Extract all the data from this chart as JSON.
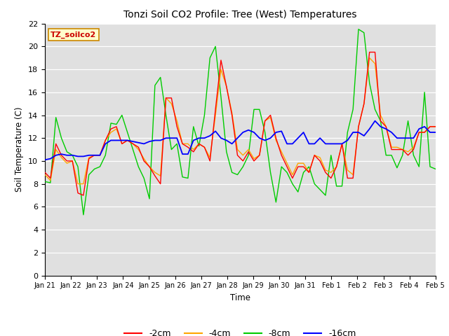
{
  "title": "Tonzi Soil CO2 Profile: Tree (West) Temperatures",
  "xlabel": "Time",
  "ylabel": "Soil Temperature (C)",
  "legend_label": "TZ_soilco2",
  "ylim": [
    0,
    22
  ],
  "yticks": [
    0,
    2,
    4,
    6,
    8,
    10,
    12,
    14,
    16,
    18,
    20,
    22
  ],
  "xtick_labels": [
    "Jan 21",
    "Jan 22",
    "Jan 23",
    "Jan 24",
    "Jan 25",
    "Jan 26",
    "Jan 27",
    "Jan 28",
    "Jan 29",
    "Jan 30",
    "Jan 31",
    "Feb 1",
    "Feb 2",
    "Feb 3",
    "Feb 4",
    "Feb 5"
  ],
  "colors": {
    "m2cm": "#ff0000",
    "m4cm": "#ffa500",
    "m8cm": "#00cc00",
    "m16cm": "#0000ff"
  },
  "series": {
    "m2cm": [
      9.0,
      8.5,
      11.5,
      10.5,
      10.0,
      10.0,
      7.2,
      7.0,
      10.2,
      10.5,
      10.5,
      11.8,
      12.8,
      13.0,
      11.5,
      11.8,
      11.5,
      11.2,
      10.0,
      9.5,
      8.7,
      8.0,
      15.5,
      15.5,
      13.0,
      11.5,
      11.2,
      10.8,
      11.5,
      11.2,
      10.0,
      14.5,
      18.8,
      16.5,
      14.0,
      10.5,
      10.0,
      10.8,
      10.0,
      10.5,
      13.5,
      14.0,
      12.0,
      10.5,
      9.5,
      8.5,
      9.5,
      9.5,
      9.0,
      10.5,
      10.0,
      9.0,
      8.5,
      9.5,
      11.5,
      8.5,
      8.5,
      13.0,
      15.0,
      19.5,
      19.5,
      13.5,
      13.0,
      11.0,
      11.0,
      11.0,
      10.5,
      11.0,
      12.5,
      12.5,
      13.0,
      13.0
    ],
    "m4cm": [
      8.8,
      8.3,
      11.0,
      10.3,
      9.8,
      10.0,
      8.0,
      8.0,
      10.3,
      10.5,
      10.5,
      11.8,
      12.5,
      12.8,
      11.5,
      11.8,
      11.5,
      11.0,
      10.2,
      9.5,
      9.0,
      8.7,
      15.5,
      15.0,
      13.5,
      11.5,
      11.5,
      11.0,
      11.5,
      11.2,
      10.3,
      14.0,
      18.0,
      16.5,
      14.2,
      11.0,
      10.5,
      11.0,
      10.2,
      10.5,
      13.5,
      13.8,
      11.8,
      10.8,
      9.8,
      8.8,
      9.8,
      9.8,
      9.0,
      10.5,
      10.3,
      9.2,
      9.0,
      9.5,
      11.5,
      9.2,
      8.8,
      13.0,
      15.0,
      19.0,
      18.5,
      14.0,
      13.0,
      11.2,
      11.2,
      11.0,
      10.8,
      11.2,
      12.5,
      12.5,
      13.0,
      13.0
    ],
    "m8cm": [
      8.2,
      8.1,
      13.8,
      12.0,
      10.8,
      10.5,
      9.5,
      5.3,
      8.8,
      9.3,
      9.5,
      10.5,
      13.3,
      13.2,
      14.0,
      12.5,
      11.0,
      9.5,
      8.5,
      6.7,
      16.6,
      17.3,
      14.0,
      11.0,
      11.5,
      8.6,
      8.5,
      13.0,
      11.3,
      14.0,
      19.0,
      20.0,
      15.6,
      10.8,
      9.0,
      8.8,
      9.5,
      10.5,
      14.5,
      14.5,
      12.5,
      9.0,
      6.4,
      9.5,
      9.0,
      8.0,
      7.3,
      9.0,
      9.5,
      8.0,
      7.5,
      7.0,
      10.5,
      7.8,
      7.8,
      12.5,
      14.5,
      21.5,
      21.2,
      16.8,
      14.5,
      13.5,
      10.5,
      10.5,
      9.4,
      10.5,
      13.5,
      10.5,
      9.5,
      16.0,
      9.5,
      9.3
    ],
    "m16cm": [
      10.1,
      10.2,
      10.5,
      10.6,
      10.5,
      10.5,
      10.4,
      10.4,
      10.5,
      10.5,
      10.5,
      11.5,
      11.8,
      11.8,
      11.8,
      11.8,
      11.7,
      11.6,
      11.5,
      11.7,
      11.8,
      11.8,
      12.0,
      12.0,
      12.0,
      10.6,
      10.6,
      11.8,
      12.0,
      12.0,
      12.2,
      12.6,
      12.0,
      11.8,
      11.5,
      12.0,
      12.5,
      12.7,
      12.5,
      12.0,
      11.8,
      12.0,
      12.5,
      12.6,
      11.5,
      11.5,
      12.0,
      12.5,
      11.5,
      11.5,
      12.0,
      11.5,
      11.5,
      11.5,
      11.5,
      11.8,
      12.5,
      12.5,
      12.2,
      12.8,
      13.5,
      13.0,
      12.8,
      12.5,
      12.0,
      12.0,
      12.0,
      12.0,
      12.8,
      13.0,
      12.5,
      12.5
    ]
  }
}
